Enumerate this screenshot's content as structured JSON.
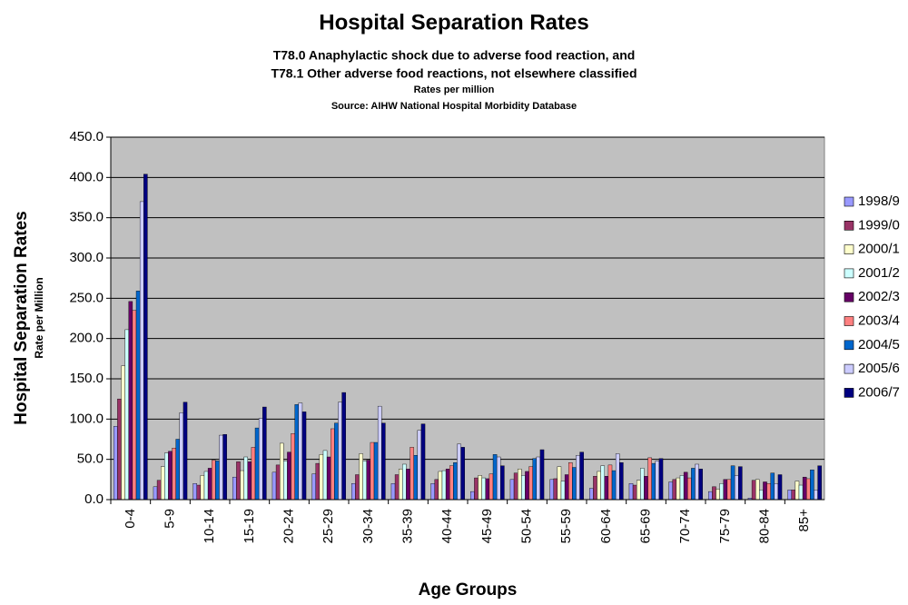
{
  "chart_data": {
    "type": "bar",
    "title": "Hospital Separation Rates",
    "subtitles": [
      "T78.0 Anaphylactic shock due to adverse food reaction, and",
      "T78.1 Other adverse food reactions, not elsewhere classified",
      "Rates per million",
      "Source: AIHW National Hospital Morbidity Database"
    ],
    "y_label": "Hospital Separation Rates",
    "y_sublabel": "Rate per Million",
    "x_label": "Age Groups",
    "categories": [
      "0-4",
      "5-9",
      "10-14",
      "15-19",
      "20-24",
      "25-29",
      "30-34",
      "35-39",
      "40-44",
      "45-49",
      "50-54",
      "55-59",
      "60-64",
      "65-69",
      "70-74",
      "75-79",
      "80-84",
      "85+"
    ],
    "series": [
      {
        "name": "1998/9",
        "color": "#9999ff",
        "values": [
          91,
          16,
          20,
          28,
          34,
          32,
          20,
          20,
          20,
          10,
          25,
          25,
          14,
          20,
          22,
          10,
          2,
          12
        ]
      },
      {
        "name": "1999/0",
        "color": "#993366",
        "values": [
          125,
          24,
          18,
          47,
          43,
          45,
          31,
          31,
          25,
          27,
          33,
          26,
          29,
          18,
          25,
          16,
          24,
          12
        ]
      },
      {
        "name": "2000/1",
        "color": "#ffffcc",
        "values": [
          166,
          41,
          30,
          36,
          70,
          56,
          57,
          38,
          35,
          30,
          38,
          41,
          35,
          24,
          27,
          13,
          25,
          23
        ]
      },
      {
        "name": "2001/2",
        "color": "#ccffff",
        "values": [
          211,
          58,
          35,
          53,
          48,
          61,
          48,
          44,
          36,
          27,
          30,
          23,
          42,
          39,
          30,
          20,
          12,
          18
        ]
      },
      {
        "name": "2002/3",
        "color": "#660066",
        "values": [
          246,
          60,
          39,
          47,
          59,
          53,
          49,
          38,
          38,
          26,
          35,
          31,
          29,
          29,
          34,
          25,
          22,
          28
        ]
      },
      {
        "name": "2003/4",
        "color": "#ff8080",
        "values": [
          235,
          64,
          49,
          65,
          82,
          88,
          71,
          65,
          42,
          32,
          41,
          46,
          43,
          52,
          27,
          25,
          20,
          26
        ]
      },
      {
        "name": "2004/5",
        "color": "#0066cc",
        "values": [
          259,
          75,
          48,
          89,
          118,
          95,
          71,
          55,
          46,
          56,
          51,
          40,
          36,
          45,
          39,
          42,
          33,
          37
        ]
      },
      {
        "name": "2005/6",
        "color": "#ccccff",
        "values": [
          370,
          108,
          80,
          101,
          120,
          121,
          116,
          86,
          69,
          53,
          53,
          55,
          57,
          48,
          44,
          30,
          20,
          12
        ]
      },
      {
        "name": "2006/7",
        "color": "#000080",
        "values": [
          404,
          121,
          81,
          115,
          109,
          133,
          95,
          94,
          65,
          42,
          62,
          59,
          46,
          51,
          38,
          41,
          31,
          42
        ]
      }
    ],
    "ylim": [
      0,
      450
    ],
    "yticks": [
      {
        "value": 0,
        "label": "0.0"
      },
      {
        "value": 50,
        "label": "50.0"
      },
      {
        "value": 100,
        "label": "100.0"
      },
      {
        "value": 150,
        "label": "150.0"
      },
      {
        "value": 200,
        "label": "200.0"
      },
      {
        "value": 250,
        "label": "250.0"
      },
      {
        "value": 300,
        "label": "300.0"
      },
      {
        "value": 350,
        "label": "350.0"
      },
      {
        "value": 400,
        "label": "400.0"
      },
      {
        "value": 450,
        "label": "450.0"
      }
    ],
    "grid": true,
    "legend": "right"
  }
}
